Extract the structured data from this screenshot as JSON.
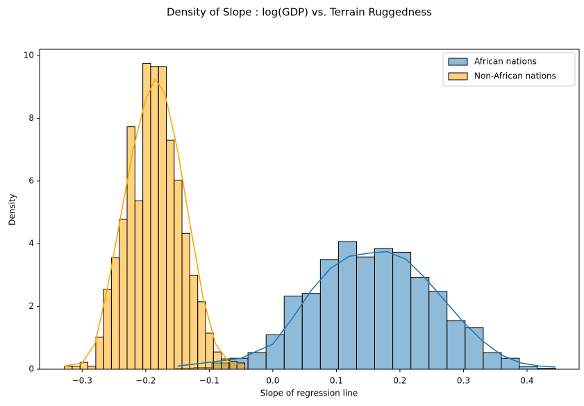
{
  "chart_data": {
    "type": "histogram",
    "title": "Density of Slope : log(GDP) vs. Terrain Ruggedness",
    "xlabel": "Slope of regression line",
    "ylabel": "Density",
    "xlim": [
      -0.367,
      0.482
    ],
    "ylim": [
      0,
      10.2
    ],
    "xticks": [
      {
        "value": -0.3,
        "label": "−0.3"
      },
      {
        "value": -0.2,
        "label": "−0.2"
      },
      {
        "value": -0.1,
        "label": "−0.1"
      },
      {
        "value": 0,
        "label": "0.0"
      },
      {
        "value": 0.1,
        "label": "0.1"
      },
      {
        "value": 0.2,
        "label": "0.2"
      },
      {
        "value": 0.3,
        "label": "0.3"
      },
      {
        "value": 0.4,
        "label": "0.4"
      }
    ],
    "yticks": [
      0,
      2,
      4,
      6,
      8,
      10
    ],
    "legend": "upper right",
    "series": [
      {
        "name": "African nations",
        "color": "#1f77b4",
        "bins": [
          -0.153,
          -0.1245,
          -0.096,
          -0.0676,
          -0.0391,
          -0.0106,
          0.0179,
          0.0463,
          0.0748,
          0.1033,
          0.1318,
          0.1602,
          0.1887,
          0.2172,
          0.2457,
          0.2741,
          0.3026,
          0.3311,
          0.3596,
          0.388,
          0.4165,
          0.445
        ],
        "values": [
          0.02,
          0.05,
          0.2,
          0.35,
          0.53,
          1.1,
          2.33,
          2.42,
          3.5,
          4.07,
          3.58,
          3.85,
          3.73,
          2.93,
          2.48,
          1.55,
          1.33,
          0.53,
          0.35,
          0.08,
          0.03
        ],
        "kde": {
          "x": [
            -0.15,
            -0.1,
            -0.05,
            0,
            0.03,
            0.06,
            0.09,
            0.12,
            0.15,
            0.18,
            0.21,
            0.24,
            0.27,
            0.3,
            0.33,
            0.36,
            0.39,
            0.42,
            0.445
          ],
          "y": [
            0.1,
            0.22,
            0.35,
            0.8,
            1.6,
            2.5,
            3.2,
            3.6,
            3.7,
            3.75,
            3.5,
            2.9,
            2.2,
            1.5,
            0.9,
            0.45,
            0.2,
            0.1,
            0.07
          ]
        }
      },
      {
        "name": "Non-African nations",
        "color": "#ffa500",
        "bins": [
          -0.328,
          -0.3157,
          -0.3033,
          -0.291,
          -0.2786,
          -0.2663,
          -0.254,
          -0.2416,
          -0.2293,
          -0.2169,
          -0.2046,
          -0.1923,
          -0.1799,
          -0.1676,
          -0.1552,
          -0.1429,
          -0.1306,
          -0.1182,
          -0.1059,
          -0.0935,
          -0.0812,
          -0.0689,
          -0.0565,
          -0.0442
        ],
        "values": [
          0.1,
          0.1,
          0.22,
          0.1,
          1.02,
          2.55,
          3.55,
          4.78,
          7.73,
          5.37,
          9.75,
          9.65,
          9.65,
          7.3,
          6.03,
          4.33,
          3.0,
          2.15,
          1.15,
          0.55,
          0.33,
          0.25,
          0.2
        ],
        "kde": {
          "x": [
            -0.328,
            -0.3,
            -0.28,
            -0.26,
            -0.24,
            -0.22,
            -0.2,
            -0.185,
            -0.17,
            -0.15,
            -0.13,
            -0.11,
            -0.09,
            -0.07,
            -0.044
          ],
          "y": [
            0.1,
            0.2,
            0.8,
            2.6,
            4.8,
            7.0,
            8.6,
            9.25,
            8.8,
            7.0,
            4.6,
            2.3,
            0.8,
            0.25,
            0.1
          ]
        }
      }
    ]
  }
}
